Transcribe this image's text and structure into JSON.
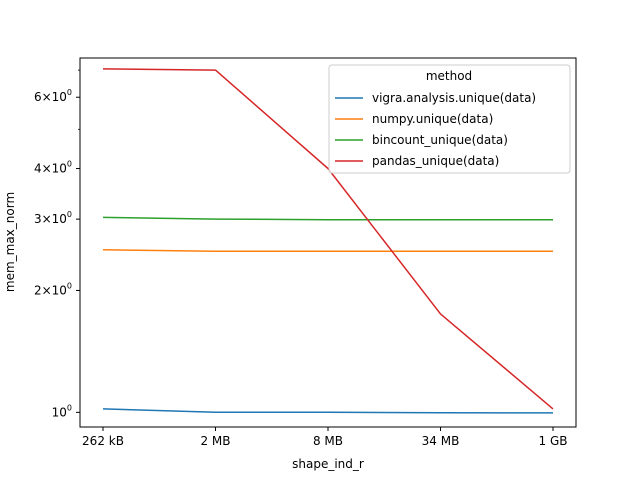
{
  "chart_data": {
    "type": "line",
    "xlabel": "shape_ind_r",
    "ylabel": "mem_max_norm",
    "y_scale": "log",
    "ylim": [
      0.92,
      7.5
    ],
    "grid": false,
    "legend": {
      "title": "method",
      "placement": "top-right"
    },
    "categories": [
      "262 kB",
      "2 MB",
      "8 MB",
      "34 MB",
      "1 GB"
    ],
    "y_major_ticks": [
      {
        "value": 1,
        "label": "10",
        "exp": "0"
      },
      {
        "value": 2,
        "label": "2×10",
        "exp": "0"
      },
      {
        "value": 3,
        "label": "3×10",
        "exp": "0"
      },
      {
        "value": 4,
        "label": "4×10",
        "exp": "0"
      },
      {
        "value": 6,
        "label": "6×10",
        "exp": "0"
      }
    ],
    "y_minor_ticks": [
      5,
      7
    ],
    "series": [
      {
        "name": "vigra.analysis.unique(data)",
        "color": "#1f77b4",
        "values": [
          1.02,
          1.0,
          1.0,
          0.998,
          0.997
        ]
      },
      {
        "name": "numpy.unique(data)",
        "color": "#ff7f0e",
        "values": [
          2.52,
          2.5,
          2.5,
          2.5,
          2.5
        ]
      },
      {
        "name": "bincount_unique(data)",
        "color": "#2ca02c",
        "values": [
          3.03,
          3.0,
          2.99,
          2.99,
          2.99
        ]
      },
      {
        "name": "pandas_unique(data)",
        "color": "#d62728",
        "values": [
          7.05,
          7.0,
          4.0,
          1.75,
          1.02
        ]
      }
    ]
  }
}
